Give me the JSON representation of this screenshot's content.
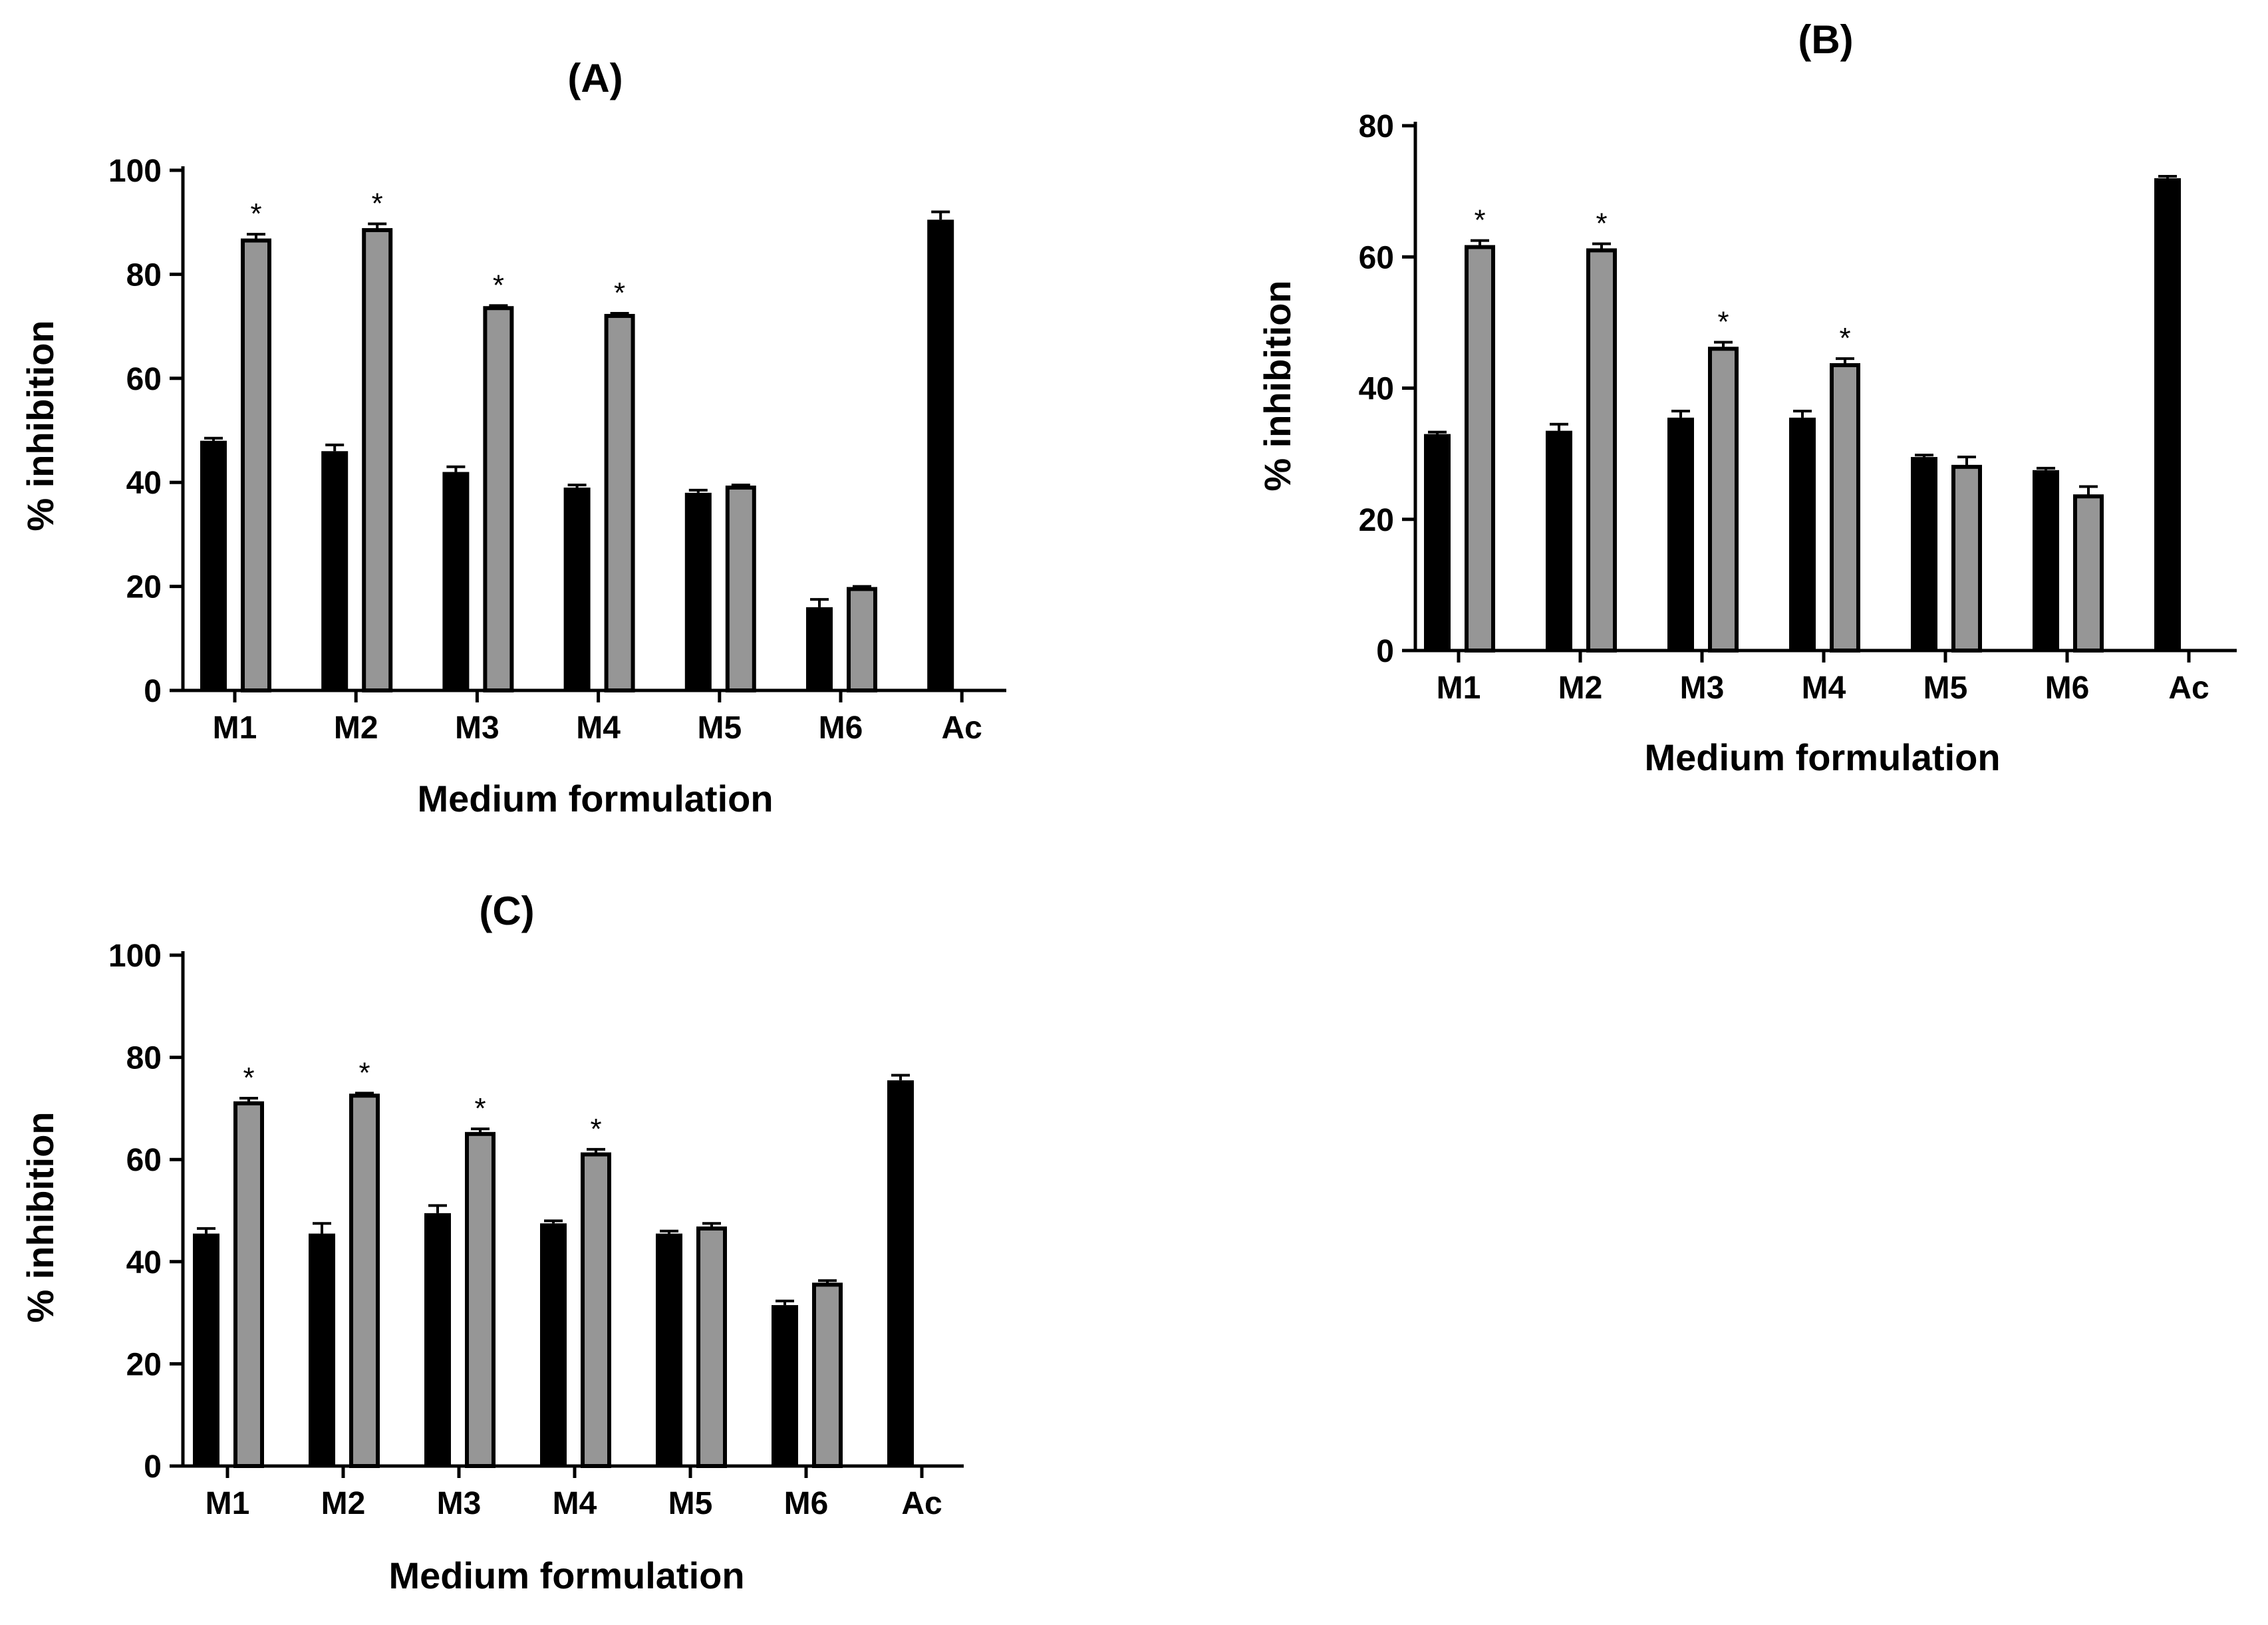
{
  "chart_data": [
    {
      "type": "bar",
      "panel": "(A)",
      "title": "(A)",
      "xlabel": "Medium formulation",
      "ylabel": "% inhibition",
      "ylim": [
        0,
        100
      ],
      "yticks": [
        "0",
        "20",
        "40",
        "60",
        "80",
        "100"
      ],
      "categories": [
        "M1",
        "M2",
        "M3",
        "M4",
        "M5",
        "M6",
        "Ac"
      ],
      "series": [
        {
          "color": "#000000",
          "values": [
            48,
            46,
            42,
            39,
            38,
            16,
            90.5
          ],
          "errors": [
            0.5,
            1.2,
            1.0,
            0.5,
            0.5,
            1.5,
            1.5
          ]
        },
        {
          "color": "#969696",
          "values": [
            86.5,
            88.5,
            73.5,
            72,
            39,
            19.5,
            null
          ],
          "errors": [
            1.2,
            1.2,
            0.5,
            0.5,
            0.5,
            0.5,
            null
          ]
        }
      ],
      "significance": [
        "*",
        "*",
        "*",
        "*",
        "",
        "",
        ""
      ]
    },
    {
      "type": "bar",
      "panel": "(B)",
      "title": "(B)",
      "xlabel": "Medium formulation",
      "ylabel": "% inhibition",
      "ylim": [
        0,
        80
      ],
      "yticks": [
        "0",
        "20",
        "40",
        "60",
        "80"
      ],
      "categories": [
        "M1",
        "M2",
        "M3",
        "M4",
        "M5",
        "M6",
        "Ac"
      ],
      "series": [
        {
          "color": "#000000",
          "values": [
            33,
            33.5,
            35.5,
            35.5,
            29.5,
            27.5,
            72
          ],
          "errors": [
            0.3,
            1.0,
            1.0,
            1.0,
            0.3,
            0.3,
            0.3
          ]
        },
        {
          "color": "#969696",
          "values": [
            61.5,
            61,
            46,
            43.5,
            28,
            23.5,
            null
          ],
          "errors": [
            1.0,
            1.0,
            1.0,
            1.0,
            1.5,
            1.5,
            null
          ]
        }
      ],
      "significance": [
        "*",
        "*",
        "*",
        "*",
        "",
        "",
        ""
      ]
    },
    {
      "type": "bar",
      "panel": "(C)",
      "title": "(C)",
      "xlabel": "Medium formulation",
      "ylabel": "% inhibition",
      "ylim": [
        0,
        100
      ],
      "yticks": [
        "0",
        "20",
        "40",
        "60",
        "80",
        "100"
      ],
      "categories": [
        "M1",
        "M2",
        "M3",
        "M4",
        "M5",
        "M6",
        "Ac"
      ],
      "series": [
        {
          "color": "#000000",
          "values": [
            45.5,
            45.5,
            49.5,
            47.5,
            45.5,
            31.5,
            75.5
          ],
          "errors": [
            1.0,
            2.0,
            1.5,
            0.5,
            0.5,
            0.8,
            1.0
          ]
        },
        {
          "color": "#969696",
          "values": [
            71,
            72.5,
            65,
            61,
            46.5,
            35.5,
            null
          ],
          "errors": [
            1.0,
            0.5,
            1.0,
            1.0,
            1.0,
            0.8,
            null
          ]
        }
      ],
      "significance": [
        "*",
        "*",
        "*",
        "*",
        "",
        "",
        ""
      ]
    }
  ]
}
